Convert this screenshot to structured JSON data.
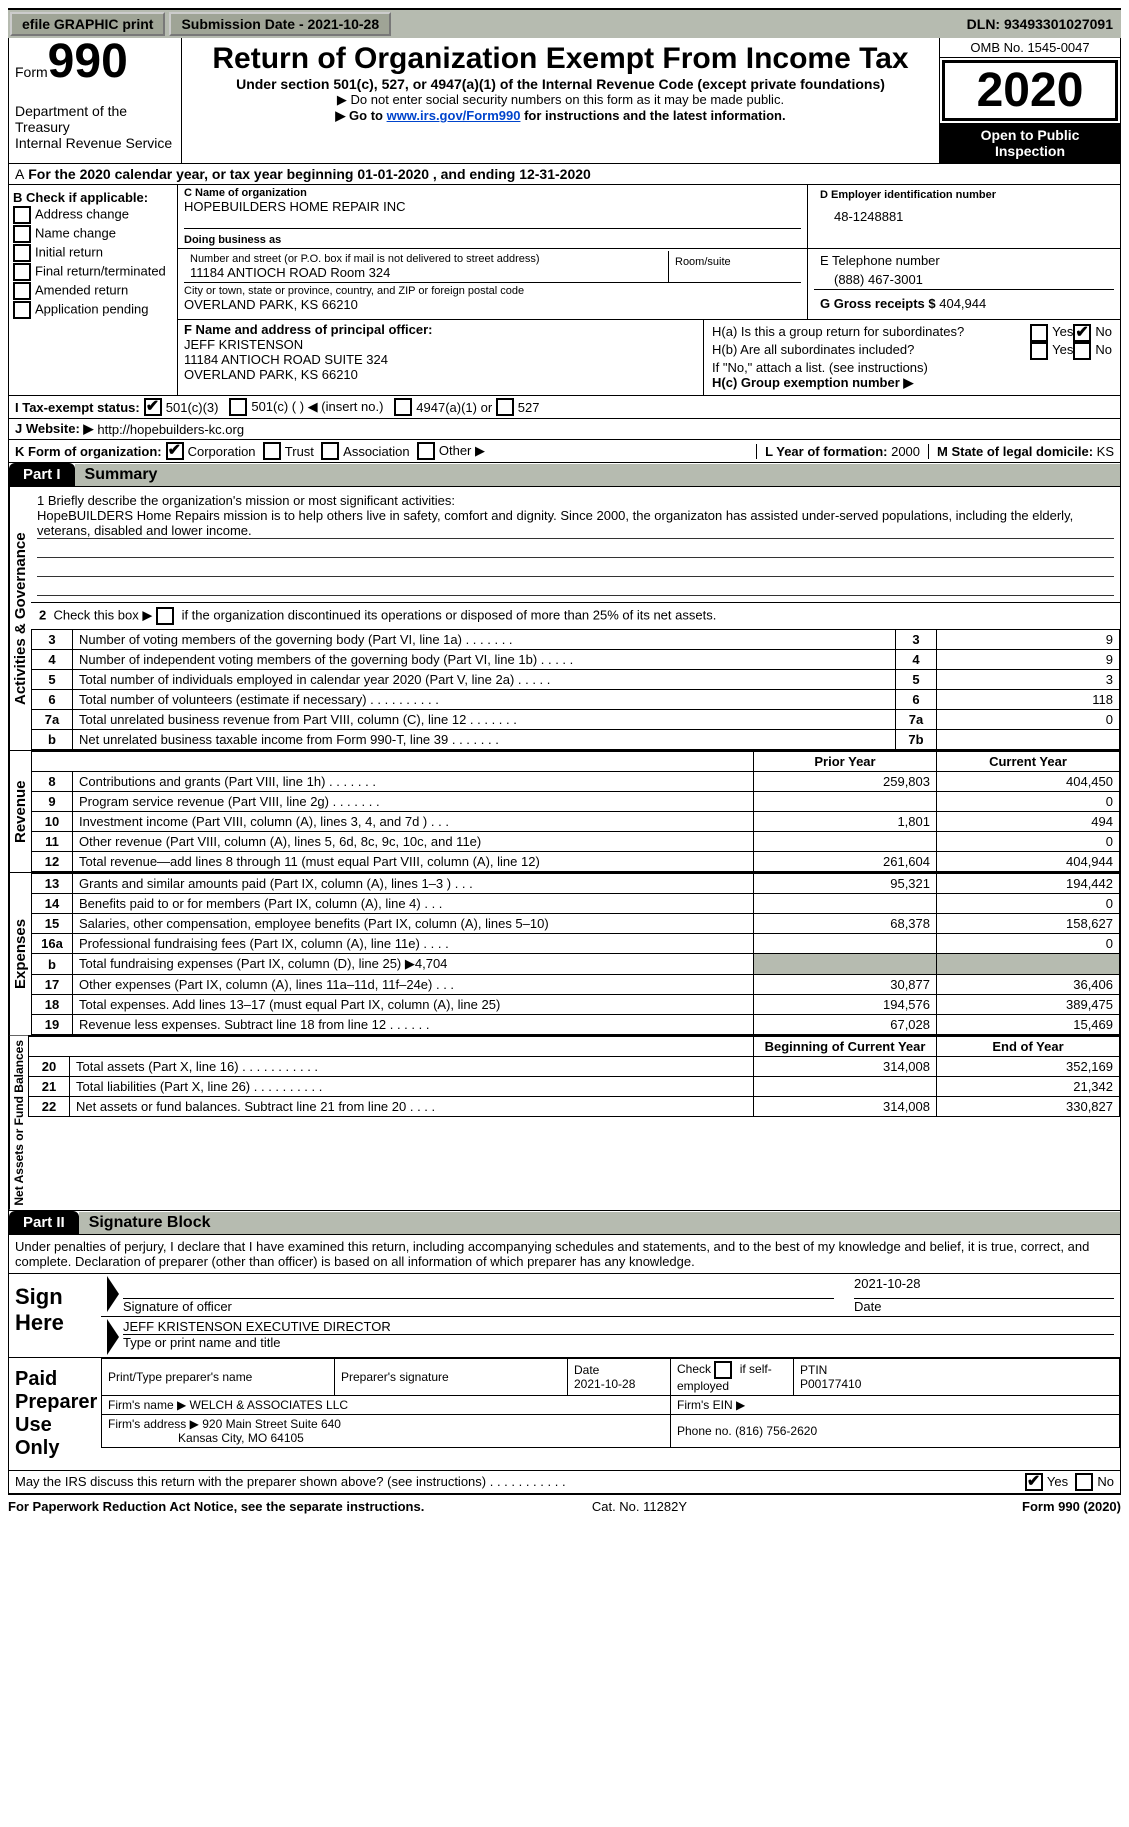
{
  "topbar": {
    "efile": "efile GRAPHIC print",
    "submission_label": "Submission Date - ",
    "submission_date": "2021-10-28",
    "dln_label": "DLN: ",
    "dln": "93493301027091"
  },
  "header": {
    "form_label": "Form",
    "form_number": "990",
    "dept1": "Department of the Treasury",
    "dept2": "Internal Revenue Service",
    "title": "Return of Organization Exempt From Income Tax",
    "subtitle": "Under section 501(c), 527, or 4947(a)(1) of the Internal Revenue Code (except private foundations)",
    "note1": "▶ Do not enter social security numbers on this form as it may be made public.",
    "note2_a": "▶ Go to ",
    "note2_link": "www.irs.gov/Form990",
    "note2_b": " for instructions and the latest information.",
    "omb": "OMB No. 1545-0047",
    "year": "2020",
    "inspect": "Open to Public Inspection"
  },
  "lineA": "For the 2020 calendar year, or tax year beginning 01-01-2020   , and ending 12-31-2020",
  "B": {
    "label": "B Check if applicable:",
    "items": [
      "Address change",
      "Name change",
      "Initial return",
      "Final return/terminated",
      "Amended return",
      "Application pending"
    ]
  },
  "C": {
    "name_label": "C Name of organization",
    "name": "HOPEBUILDERS HOME REPAIR INC",
    "dba_label": "Doing business as",
    "addr_label": "Number and street (or P.O. box if mail is not delivered to street address)",
    "room_label": "Room/suite",
    "addr": "11184 ANTIOCH ROAD Room 324",
    "city_label": "City or town, state or province, country, and ZIP or foreign postal code",
    "city": "OVERLAND PARK, KS  66210"
  },
  "D": {
    "label": "D Employer identification number",
    "value": "48-1248881"
  },
  "E": {
    "label": "E Telephone number",
    "value": "(888) 467-3001"
  },
  "G": {
    "label": "G Gross receipts $ ",
    "value": "404,944"
  },
  "F": {
    "label": "F Name and address of principal officer:",
    "line1": "JEFF KRISTENSON",
    "line2": "11184 ANTIOCH ROAD SUITE 324",
    "line3": "OVERLAND PARK, KS  66210"
  },
  "H": {
    "a": "H(a)  Is this a group return for subordinates?",
    "b": "H(b)  Are all subordinates included?",
    "b_note": "If \"No,\" attach a list. (see instructions)",
    "c": "H(c)  Group exemption number ▶",
    "yes": "Yes",
    "no": "No"
  },
  "I": {
    "label": "I   Tax-exempt status:",
    "o1": "501(c)(3)",
    "o2": "501(c) (  ) ◀ (insert no.)",
    "o3": "4947(a)(1) or",
    "o4": "527"
  },
  "J": {
    "label": "J   Website: ▶",
    "value": "http://hopebuilders-kc.org"
  },
  "K": {
    "label": "K Form of organization:",
    "o1": "Corporation",
    "o2": "Trust",
    "o3": "Association",
    "o4": "Other ▶"
  },
  "L": {
    "label": "L Year of formation: ",
    "value": "2000"
  },
  "M": {
    "label": "M State of legal domicile: ",
    "value": "KS"
  },
  "part1": {
    "hdr": "Part I",
    "title": "Summary"
  },
  "mission": {
    "q": "1  Briefly describe the organization's mission or most significant activities:",
    "text": "HopeBUILDERS Home Repairs mission is to help others live in safety, comfort and dignity. Since 2000, the organizaton has assisted under-served populations, including the elderly, veterans, disabled and lower income."
  },
  "gov": {
    "vlabel": "Activities & Governance",
    "l2": "2   Check this box ▶        if the organization discontinued its operations or disposed of more than 25% of its net assets.",
    "rows": [
      {
        "n": "3",
        "d": "Number of voting members of the governing body (Part VI, line 1a)   .   .   .   .   .   .   .",
        "ln": "3",
        "v": "9"
      },
      {
        "n": "4",
        "d": "Number of independent voting members of the governing body (Part VI, line 1b)  .   .   .   .   .",
        "ln": "4",
        "v": "9"
      },
      {
        "n": "5",
        "d": "Total number of individuals employed in calendar year 2020 (Part V, line 2a)  .   .   .   .   .",
        "ln": "5",
        "v": "3"
      },
      {
        "n": "6",
        "d": "Total number of volunteers (estimate if necessary)  .   .   .   .   .   .   .   .   .   .",
        "ln": "6",
        "v": "118"
      },
      {
        "n": "7a",
        "d": "Total unrelated business revenue from Part VIII, column (C), line 12  .   .   .   .   .   .   .",
        "ln": "7a",
        "v": "0"
      },
      {
        "n": "b",
        "d": "Net unrelated business taxable income from Form 990-T, line 39  .   .   .   .   .   .   .",
        "ln": "7b",
        "v": ""
      }
    ]
  },
  "cols": {
    "prior": "Prior Year",
    "current": "Current Year"
  },
  "rev": {
    "vlabel": "Revenue",
    "rows": [
      {
        "n": "8",
        "d": "Contributions and grants (Part VIII, line 1h)  .   .   .   .   .   .   .",
        "p": "259,803",
        "c": "404,450"
      },
      {
        "n": "9",
        "d": "Program service revenue (Part VIII, line 2g)  .   .   .   .   .   .   .",
        "p": "",
        "c": "0"
      },
      {
        "n": "10",
        "d": "Investment income (Part VIII, column (A), lines 3, 4, and 7d )  .   .   .",
        "p": "1,801",
        "c": "494"
      },
      {
        "n": "11",
        "d": "Other revenue (Part VIII, column (A), lines 5, 6d, 8c, 9c, 10c, and 11e)",
        "p": "",
        "c": "0"
      },
      {
        "n": "12",
        "d": "Total revenue—add lines 8 through 11 (must equal Part VIII, column (A), line 12)",
        "p": "261,604",
        "c": "404,944"
      }
    ]
  },
  "exp": {
    "vlabel": "Expenses",
    "rows": [
      {
        "n": "13",
        "d": "Grants and similar amounts paid (Part IX, column (A), lines 1–3 )  .   .   .",
        "p": "95,321",
        "c": "194,442"
      },
      {
        "n": "14",
        "d": "Benefits paid to or for members (Part IX, column (A), line 4)  .   .   .",
        "p": "",
        "c": "0"
      },
      {
        "n": "15",
        "d": "Salaries, other compensation, employee benefits (Part IX, column (A), lines 5–10)",
        "p": "68,378",
        "c": "158,627"
      },
      {
        "n": "16a",
        "d": "Professional fundraising fees (Part IX, column (A), line 11e)  .   .   .   .",
        "p": "",
        "c": "0"
      },
      {
        "n": "b",
        "d": "Total fundraising expenses (Part IX, column (D), line 25) ▶4,704",
        "shade": true
      },
      {
        "n": "17",
        "d": "Other expenses (Part IX, column (A), lines 11a–11d, 11f–24e)  .   .   .",
        "p": "30,877",
        "c": "36,406"
      },
      {
        "n": "18",
        "d": "Total expenses. Add lines 13–17 (must equal Part IX, column (A), line 25)",
        "p": "194,576",
        "c": "389,475"
      },
      {
        "n": "19",
        "d": "Revenue less expenses. Subtract line 18 from line 12  .   .   .   .   .   .",
        "p": "67,028",
        "c": "15,469"
      }
    ]
  },
  "net": {
    "vlabel": "Net Assets or Fund Balances",
    "cols": {
      "beg": "Beginning of Current Year",
      "end": "End of Year"
    },
    "rows": [
      {
        "n": "20",
        "d": "Total assets (Part X, line 16)  .   .   .   .   .   .   .   .   .   .   .",
        "p": "314,008",
        "c": "352,169"
      },
      {
        "n": "21",
        "d": "Total liabilities (Part X, line 26)  .   .   .   .   .   .   .   .   .   .",
        "p": "",
        "c": "21,342"
      },
      {
        "n": "22",
        "d": "Net assets or fund balances. Subtract line 21 from line 20  .   .   .   .",
        "p": "314,008",
        "c": "330,827"
      }
    ]
  },
  "part2": {
    "hdr": "Part II",
    "title": "Signature Block"
  },
  "penalty": "Under penalties of perjury, I declare that I have examined this return, including accompanying schedules and statements, and to the best of my knowledge and belief, it is true, correct, and complete. Declaration of preparer (other than officer) is based on all information of which preparer has any knowledge.",
  "sign": {
    "label": "Sign Here",
    "sig_label": "Signature of officer",
    "date": "2021-10-28",
    "date_label": "Date",
    "name": "JEFF KRISTENSON  EXECUTIVE DIRECTOR",
    "name_label": "Type or print name and title"
  },
  "paid": {
    "label": "Paid Preparer Use Only",
    "h1": "Print/Type preparer's name",
    "h2": "Preparer's signature",
    "h3": "Date",
    "h3v": "2021-10-28",
    "h4a": "Check",
    "h4b": "if self-employed",
    "h5": "PTIN",
    "h5v": "P00177410",
    "firm_label": "Firm's name   ▶",
    "firm": "WELCH & ASSOCIATES LLC",
    "ein_label": "Firm's EIN ▶",
    "addr_label": "Firm's address ▶",
    "addr1": "920 Main Street Suite 640",
    "addr2": "Kansas City, MO  64105",
    "phone_label": "Phone no. ",
    "phone": "(816) 756-2620"
  },
  "discuss": {
    "q": "May the IRS discuss this return with the preparer shown above? (see instructions)   .   .   .   .   .   .   .   .   .   .   .",
    "yes": "Yes",
    "no": "No"
  },
  "footer": {
    "left": "For Paperwork Reduction Act Notice, see the separate instructions.",
    "mid": "Cat. No. 11282Y",
    "right": "Form 990 (2020)"
  }
}
